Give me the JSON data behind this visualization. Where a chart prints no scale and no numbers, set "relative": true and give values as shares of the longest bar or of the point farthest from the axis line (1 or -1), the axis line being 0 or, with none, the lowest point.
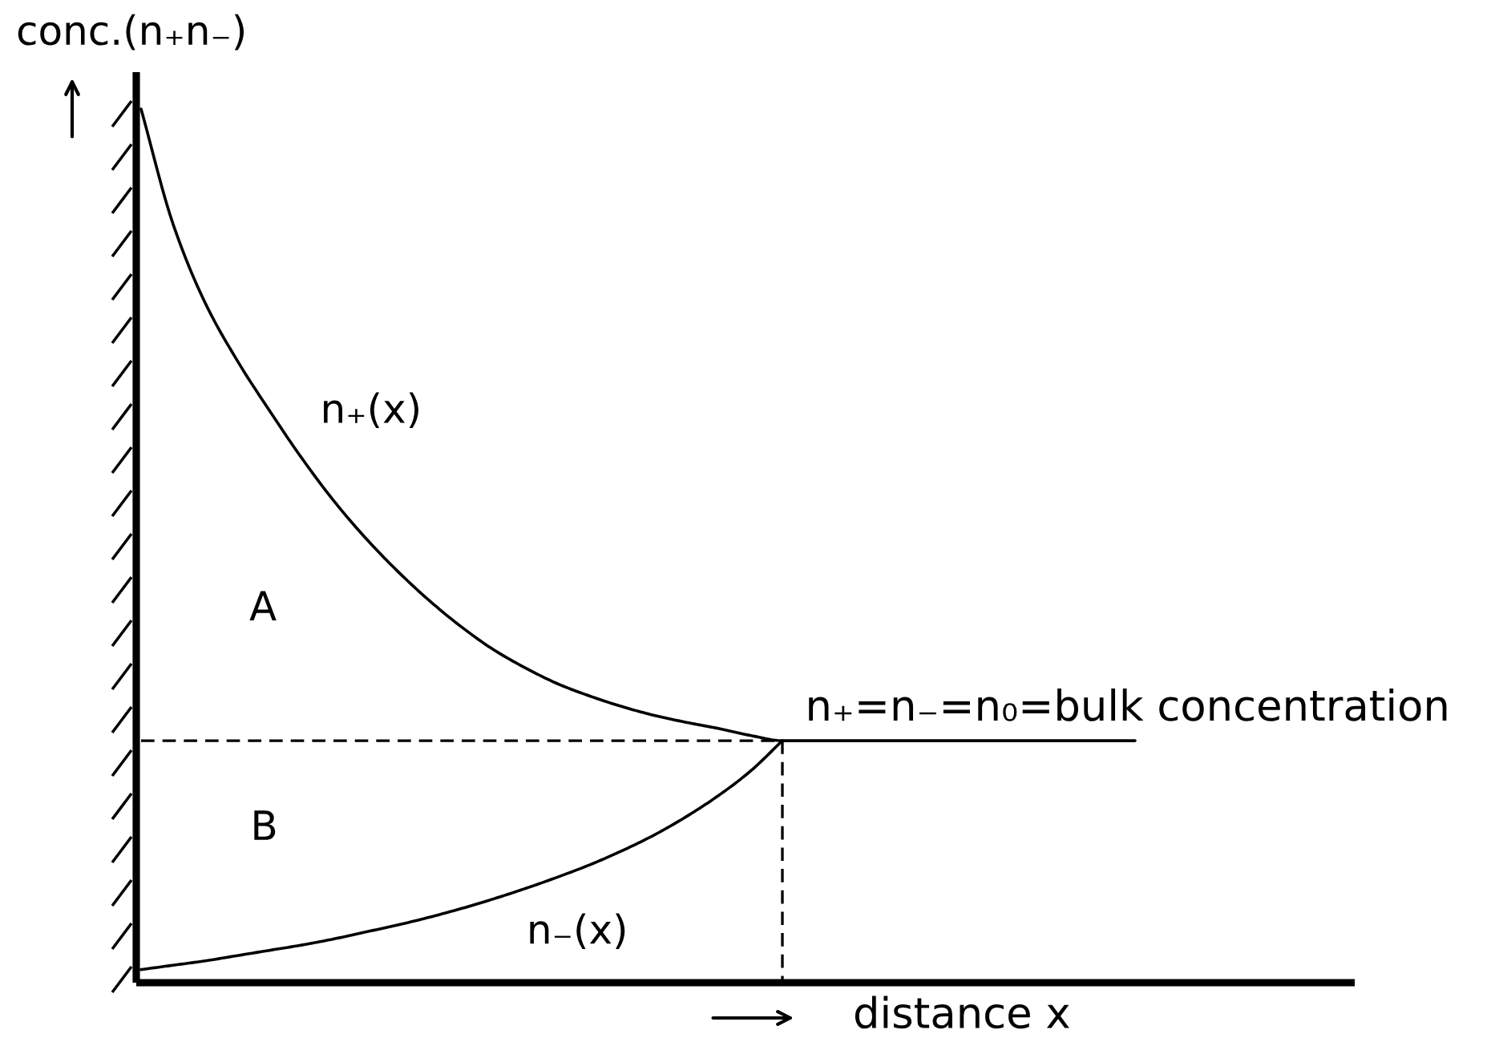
{
  "chart_data": {
    "type": "line",
    "relative": true,
    "tick_labels": false,
    "xlabel": "distance x",
    "ylabel": "conc.(n₊n₋)",
    "categories": [
      null,
      null,
      null,
      null,
      null,
      null,
      null,
      null,
      null,
      null,
      null,
      null,
      null,
      null,
      null,
      null,
      null,
      null,
      null,
      null,
      null,
      null,
      null,
      null,
      null,
      null,
      null,
      null,
      null,
      null,
      null,
      null,
      null,
      null,
      null,
      null,
      null,
      null
    ],
    "series": [
      {
        "name": "n₊(x)",
        "color": "#000000",
        "values": [
          1.0,
          0.868,
          0.778,
          0.712,
          0.655,
          0.601,
          0.552,
          0.509,
          0.471,
          0.437,
          0.407,
          0.381,
          0.36,
          0.342,
          0.328,
          0.316,
          0.306,
          0.298,
          0.291,
          0.283,
          0.277,
          0.277,
          0.277,
          0.277,
          0.277,
          0.277,
          0.277,
          0.277,
          0.277,
          0.277,
          0.277,
          0.277,
          null,
          null,
          null,
          null,
          null,
          null
        ]
      },
      {
        "name": "n₋(x)",
        "color": "#000000",
        "values": [
          0.015,
          0.02,
          0.025,
          0.031,
          0.037,
          0.043,
          0.05,
          0.058,
          0.066,
          0.075,
          0.085,
          0.096,
          0.108,
          0.121,
          0.135,
          0.151,
          0.169,
          0.19,
          0.214,
          0.242,
          0.277,
          null,
          null,
          null,
          null,
          null,
          null,
          null,
          null,
          null,
          null,
          null,
          null,
          null,
          null,
          null,
          null,
          null
        ]
      },
      {
        "type": "step",
        "line_style": "dashed",
        "color": "#000000",
        "values": [
          0.277,
          0.277,
          0.277,
          0.277,
          0.277,
          0.277,
          0.277,
          0.277,
          0.277,
          0.277,
          0.277,
          0.277,
          0.277,
          0.277,
          0.277,
          0.277,
          0.277,
          0.277,
          0.277,
          0.277,
          0,
          null,
          null,
          null,
          null,
          null,
          null,
          null,
          null,
          null,
          null,
          null,
          null,
          null,
          null,
          null,
          null,
          null
        ]
      }
    ],
    "annotations": [
      "A",
      "B",
      {
        "text": "n₊=n₋=n₀=bulk concentration",
        "y": 0.277
      }
    ]
  }
}
